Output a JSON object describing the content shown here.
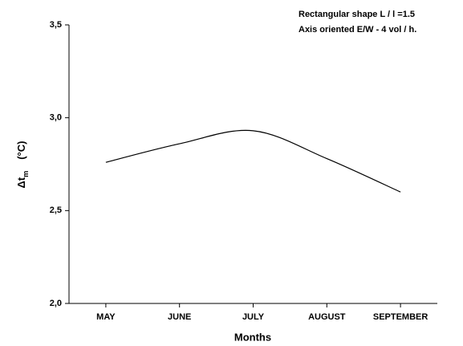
{
  "chart_data": {
    "type": "line",
    "annotations": [
      "Rectangular shape L / l =1.5",
      "Axis oriented E/W  - 4 vol / h."
    ],
    "xlabel": "Months",
    "ylabel": {
      "main": "Δt",
      "subscript": "m",
      "unit": "(°C)"
    },
    "categories": [
      "MAY",
      "JUNE",
      "JULY",
      "AUGUST",
      "SEPTEMBER"
    ],
    "series": [
      {
        "name": "Δt m",
        "color": "#000000",
        "values": [
          2.76,
          2.86,
          2.93,
          2.78,
          2.6
        ]
      }
    ],
    "ylim": [
      2.0,
      3.5
    ],
    "yticks": [
      {
        "value": 2.0,
        "label": "2,0"
      },
      {
        "value": 2.5,
        "label": "2,5"
      },
      {
        "value": 3.0,
        "label": "3,0"
      },
      {
        "value": 3.5,
        "label": "3,5"
      }
    ],
    "grid": false
  }
}
